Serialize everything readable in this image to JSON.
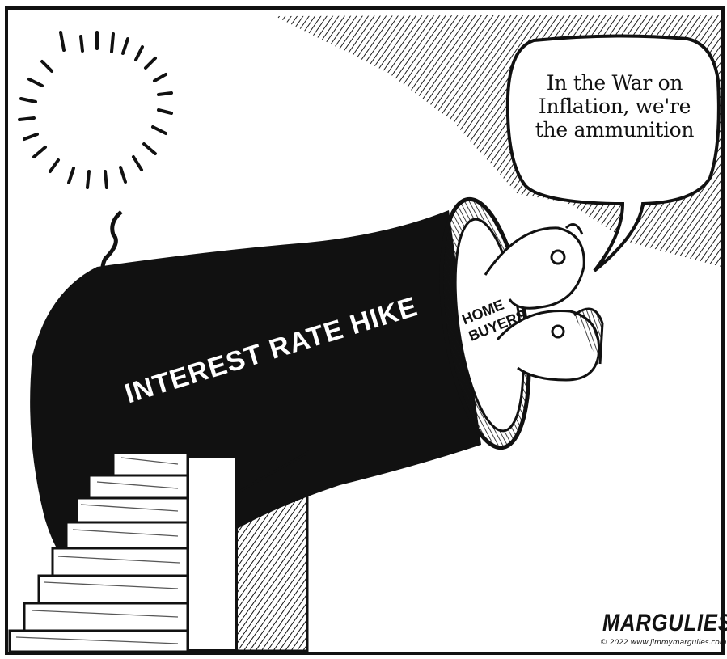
{
  "speech_bubble": {
    "lines": [
      "In the War on",
      "Inflation, we're",
      "the ammunition"
    ]
  },
  "cannon": {
    "label": "INTEREST RATE HIKE"
  },
  "ammunition": {
    "lines": [
      "HOME",
      "BUYERS"
    ]
  },
  "credit": {
    "signature": "MARGULIES",
    "copyright": "© 2022 www.jimmymargulies.com"
  },
  "colors": {
    "ink": "#111111",
    "paper": "#ffffff"
  }
}
